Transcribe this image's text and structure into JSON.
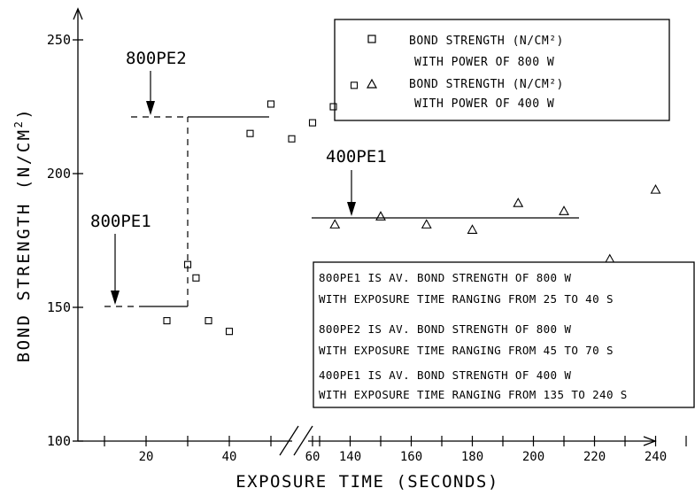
{
  "chart_data": {
    "type": "scatter",
    "xlabel": "EXPOSURE TIME (SECONDS)",
    "ylabel_main": "BOND STRENGTH (N/CM",
    "ylabel_sup": "2",
    "ylabel_end": ")",
    "x_segments": [
      {
        "range": [
          0,
          70
        ],
        "ticks": [
          20,
          40,
          60
        ],
        "minor": [
          10,
          30,
          50
        ]
      },
      {
        "range": [
          125,
          250
        ],
        "ticks": [
          140,
          160,
          180,
          200,
          220,
          240
        ],
        "minor": [
          130,
          150,
          170,
          190,
          210,
          230,
          250
        ]
      }
    ],
    "x_tick_labels": [
      "20",
      "40",
      "60",
      "140",
      "160",
      "180",
      "200",
      "220",
      "240"
    ],
    "ylim": [
      100,
      260
    ],
    "y_ticks": [
      100,
      150,
      200,
      250
    ],
    "y_tick_labels": [
      "100",
      "150",
      "200",
      "250"
    ],
    "series": [
      {
        "name": "BOND STRENGTH (N/CM²) WITH POWER OF 800 W",
        "marker": "square",
        "points": [
          [
            25,
            145
          ],
          [
            30,
            166
          ],
          [
            32,
            161
          ],
          [
            35,
            145
          ],
          [
            40,
            141
          ],
          [
            45,
            215
          ],
          [
            50,
            226
          ],
          [
            55,
            213
          ],
          [
            60,
            219
          ],
          [
            65,
            225
          ],
          [
            70,
            233
          ]
        ]
      },
      {
        "name": "BOND STRENGTH (N/CM²) WITH POWER OF 400 W",
        "marker": "triangle",
        "points": [
          [
            135,
            181
          ],
          [
            150,
            184
          ],
          [
            165,
            181
          ],
          [
            180,
            179
          ],
          [
            195,
            189
          ],
          [
            210,
            186
          ],
          [
            225,
            168
          ],
          [
            240,
            194
          ]
        ]
      }
    ],
    "reference_lines": [
      {
        "label": "800PE1",
        "y": 150,
        "x_range": [
          22,
          40
        ],
        "style": "mixed"
      },
      {
        "label": "800PE2",
        "y": 221,
        "x_range": [
          22,
          70
        ],
        "style": "mixed"
      },
      {
        "label": "400PE1",
        "y": 183,
        "x_range": [
          135,
          225
        ],
        "style": "solid"
      }
    ],
    "annotation_labels": {
      "pe1_800": "800PE1",
      "pe2_800": "800PE2",
      "pe1_400": "400PE1"
    },
    "legend": {
      "position": "top-right",
      "entries": [
        {
          "marker": "square",
          "line1": "BOND STRENGTH (N/CM²)",
          "line2": "WITH POWER OF 800 W"
        },
        {
          "marker": "triangle",
          "line1": "BOND STRENGTH (N/CM²)",
          "line2": "WITH POWER OF 400 W"
        }
      ]
    },
    "note_box": {
      "lines": [
        "800PE1 IS AV. BOND STRENGTH OF 800 W",
        "WITH EXPOSURE TIME RANGING FROM 25 TO 40 S",
        "800PE2 IS AV. BOND STRENGTH OF 800 W",
        "WITH EXPOSURE TIME RANGING FROM 45 TO 70 S",
        "400PE1 IS AV. BOND STRENGTH OF 400 W",
        "WITH EXPOSURE TIME RANGING FROM 135 TO 240 S"
      ]
    }
  }
}
